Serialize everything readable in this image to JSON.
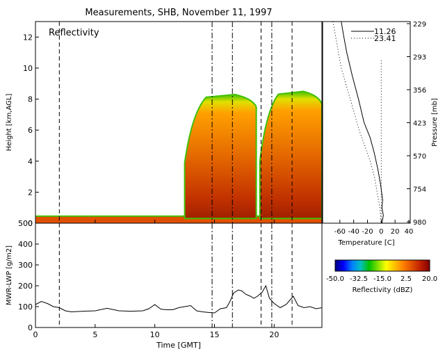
{
  "chart_data": [
    {
      "type": "heatmap",
      "title": "Measurements, SHB, November 11, 1997",
      "panel_label": "Reflectivity",
      "ylabel": "Height [km,AGL]",
      "xlim": [
        0,
        24
      ],
      "ylim": [
        0,
        13
      ],
      "x_ticks": [
        "0",
        "5",
        "10",
        "15",
        "20"
      ],
      "y_ticks": [
        "0",
        "2",
        "4",
        "6",
        "8",
        "10",
        "12"
      ],
      "event_lines": [
        {
          "x": 2.0,
          "style": "dashed"
        },
        {
          "x": 14.8,
          "style": "dash-dot"
        },
        {
          "x": 16.5,
          "style": "dash-dot"
        },
        {
          "x": 18.9,
          "style": "dashed"
        },
        {
          "x": 19.8,
          "style": "dash-dot"
        },
        {
          "x": 21.5,
          "style": "dashed"
        }
      ],
      "cloud_regions": [
        {
          "x_start": 0,
          "x_end": 24,
          "base_km": 0.0,
          "top_km": 0.5,
          "peak_dbz": 5,
          "description": "low-level layer"
        },
        {
          "x_start": 12.5,
          "x_end": 18.5,
          "base_km": 0.3,
          "top_km": 8.3,
          "peak_dbz": 15
        },
        {
          "x_start": 18.8,
          "x_end": 24,
          "base_km": 0.3,
          "top_km": 8.5,
          "peak_dbz": 18
        }
      ]
    },
    {
      "type": "line",
      "ylabel": "MWR-LWP [g/m2]",
      "xlabel": "Time [GMT]",
      "xlim": [
        0,
        24
      ],
      "ylim": [
        0,
        500
      ],
      "x_ticks": [
        "0",
        "5",
        "10",
        "15",
        "20"
      ],
      "y_ticks": [
        "0",
        "100",
        "200",
        "300",
        "400",
        "500"
      ],
      "series": [
        {
          "x": [
            0,
            0.5,
            1,
            1.5,
            2,
            2.5,
            3,
            4,
            5,
            6,
            7,
            8,
            9,
            9.5,
            10,
            10.5,
            11,
            11.5,
            12,
            12.5,
            13,
            13.5,
            14,
            14.5,
            15,
            15.5,
            16,
            16.3,
            16.6,
            17,
            17.3,
            17.6,
            18,
            18.3,
            18.6,
            19,
            19.3,
            19.6,
            20,
            20.5,
            21,
            21.3,
            21.6,
            22,
            22.5,
            23,
            23.5,
            24
          ],
          "y": [
            110,
            125,
            115,
            100,
            95,
            80,
            75,
            78,
            80,
            92,
            80,
            78,
            80,
            90,
            110,
            88,
            85,
            85,
            95,
            100,
            105,
            80,
            75,
            72,
            70,
            90,
            95,
            125,
            165,
            180,
            175,
            160,
            150,
            140,
            150,
            170,
            200,
            140,
            115,
            95,
            110,
            130,
            150,
            105,
            95,
            100,
            90,
            95
          ]
        }
      ]
    },
    {
      "type": "line",
      "xlabel": "Temperature [C]",
      "ylabel": "Pressure [mb]",
      "xlim": [
        -85,
        42
      ],
      "x_ticks": [
        "-60",
        "-40",
        "-20",
        "0",
        "20",
        "40"
      ],
      "y_ticks": [
        "229",
        "293",
        "356",
        "423",
        "570",
        "754",
        "980"
      ],
      "series": [
        {
          "name": "11.26",
          "style": "solid",
          "height_km": [
            13.0,
            12.2,
            11.0,
            9.5,
            8.0,
            6.5,
            5.5,
            4.5,
            3.5,
            2.5,
            1.5,
            1.0,
            0.5,
            0
          ],
          "temperature_c": [
            -58,
            -55,
            -50,
            -42,
            -33,
            -25,
            -16,
            -10,
            -5,
            -1,
            2,
            1,
            3,
            1
          ]
        },
        {
          "name": "23.41",
          "style": "dotted",
          "height_km": [
            13.0,
            10.0,
            8.0,
            6.0,
            5.0,
            4.0,
            3.0,
            2.0,
            1.0,
            0
          ],
          "temperature_c": [
            -70,
            -58,
            -45,
            -32,
            -24,
            -16,
            -10,
            -6,
            -2,
            0
          ]
        },
        {
          "name": "",
          "style": "dotted",
          "height_km": [
            10.5,
            0
          ],
          "temperature_c": [
            0,
            0
          ]
        }
      ]
    },
    {
      "type": "colorbar",
      "label": "Reflectivity (dBZ)",
      "range": [
        -50,
        20
      ],
      "tick_labels": [
        "-50.0",
        "-32.5",
        "-15.0",
        "2.5",
        "20.0"
      ],
      "colors": [
        "#000080",
        "#0000ff",
        "#0080ff",
        "#00c0c0",
        "#00c000",
        "#80e000",
        "#ffff00",
        "#ffc000",
        "#ff8000",
        "#e05000",
        "#c02000",
        "#800000"
      ]
    }
  ]
}
